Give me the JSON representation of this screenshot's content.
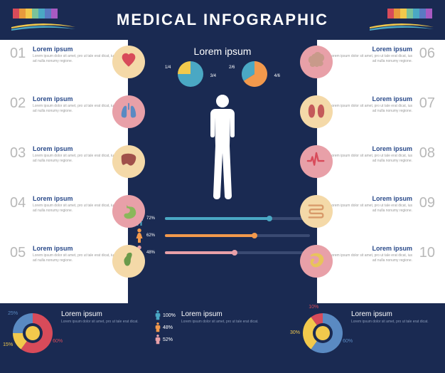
{
  "title": "MEDICAL INFOGRAPHIC",
  "header": {
    "bg": "#1a2a52",
    "title_color": "#ffffff",
    "stripe_colors": [
      "#d84b5a",
      "#e89a3c",
      "#f2c94c",
      "#7ac29a",
      "#4aa8c4",
      "#5a7ac2",
      "#a85ac2"
    ],
    "swoosh_colors": [
      "#f2c94c",
      "#4aa8c4",
      "#e89a3c"
    ]
  },
  "items_left": [
    {
      "num": "01",
      "title": "Lorem ipsum",
      "body": "Lorem ipsum dolor sit amet, pro ut tale erat dicat, ius ad nulla nonumy regione.",
      "organ": "heart",
      "circle": "#f4d9a8",
      "icon": "#d84b5a"
    },
    {
      "num": "02",
      "title": "Lorem ipsum",
      "body": "Lorem ipsum dolor sit amet, pro ut tale erat dicat, ius ad nulla nonumy regione.",
      "organ": "lungs",
      "circle": "#e8a0a8",
      "icon": "#5a8ac2"
    },
    {
      "num": "03",
      "title": "Lorem ipsum",
      "body": "Lorem ipsum dolor sit amet, pro ut tale erat dicat, ius ad nulla nonumy regione.",
      "organ": "liver",
      "circle": "#f4d9a8",
      "icon": "#a0504a"
    },
    {
      "num": "04",
      "title": "Lorem ipsum",
      "body": "Lorem ipsum dolor sit amet, pro ut tale erat dicat, ius ad nulla nonumy regione.",
      "organ": "stomach",
      "circle": "#e8a0a8",
      "icon": "#8ab85a"
    },
    {
      "num": "05",
      "title": "Lorem ipsum",
      "body": "Lorem ipsum dolor sit amet, pro ut tale erat dicat, ius ad nulla nonumy regione.",
      "organ": "gallbladder",
      "circle": "#f4d9a8",
      "icon": "#6a9a4a"
    }
  ],
  "items_right": [
    {
      "num": "06",
      "title": "Lorem ipsum",
      "body": "Lorem ipsum dolor sit amet, pro ut tale erat dicat, ius ad nulla nonumy regione.",
      "organ": "brain",
      "circle": "#e8a0a8",
      "icon": "#c89a8a"
    },
    {
      "num": "07",
      "title": "Lorem ipsum",
      "body": "Lorem ipsum dolor sit amet, pro ut tale erat dicat, ius ad nulla nonumy regione.",
      "organ": "kidneys",
      "circle": "#f4d9a8",
      "icon": "#c45a5a"
    },
    {
      "num": "08",
      "title": "Lorem ipsum",
      "body": "Lorem ipsum dolor sit amet, pro ut tale erat dicat, ius ad nulla nonumy regione.",
      "organ": "pulse",
      "circle": "#e8a0a8",
      "icon": "#d84b5a"
    },
    {
      "num": "09",
      "title": "Lorem ipsum",
      "body": "Lorem ipsum dolor sit amet, pro ut tale erat dicat, ius ad nulla nonumy regione.",
      "organ": "intestine",
      "circle": "#f4d9a8",
      "icon": "#d89a6a"
    },
    {
      "num": "10",
      "title": "Lorem ipsum",
      "body": "Lorem ipsum dolor sit amet, pro ut tale erat dicat, ius ad nulla nonumy regione.",
      "organ": "spleen",
      "circle": "#e8a0a8",
      "icon": "#e8c45a"
    }
  ],
  "center": {
    "title": "Lorem ipsum",
    "body_color": "#ffffff",
    "pies": [
      {
        "slices": [
          {
            "color": "#4aa8c4",
            "pct": 75
          },
          {
            "color": "#f2c94c",
            "pct": 25
          }
        ],
        "labels": [
          "1/4",
          "3/4"
        ]
      },
      {
        "slices": [
          {
            "color": "#f2994c",
            "pct": 66
          },
          {
            "color": "#4aa8c4",
            "pct": 34
          }
        ],
        "labels": [
          "2/6",
          "4/6"
        ]
      }
    ],
    "bars": [
      {
        "icon": "male",
        "color": "#4aa8c4",
        "val": 72,
        "label": "72%"
      },
      {
        "icon": "female",
        "color": "#f2994c",
        "val": 62,
        "label": "62%"
      },
      {
        "icon": "female",
        "color": "#e8a0a8",
        "val": 48,
        "label": "48%"
      }
    ]
  },
  "footer": [
    {
      "type": "donut",
      "title": "Lorem ipsum",
      "body": "Lorem ipsum dolor sit amet, pro ut tale erat dicat.",
      "segments": [
        {
          "color": "#d84b5a",
          "pct": 60,
          "label": "60%"
        },
        {
          "color": "#f2c94c",
          "pct": 15,
          "label": "15%"
        },
        {
          "color": "#5a8ac2",
          "pct": 25,
          "label": "25%"
        }
      ],
      "center_color": "#f2c94c"
    },
    {
      "type": "people",
      "title": "Lorem ipsum",
      "body": "Lorem ipsum dolor sit amet, pro ut tale erat dicat.",
      "items": [
        {
          "color": "#4aa8c4",
          "label": "100%"
        },
        {
          "color": "#f2994c",
          "label": "48%"
        },
        {
          "color": "#e8a0a8",
          "label": "52%"
        }
      ]
    },
    {
      "type": "donut",
      "title": "Lorem ipsum",
      "body": "Lorem ipsum dolor sit amet, pro ut tale erat dicat.",
      "segments": [
        {
          "color": "#5a8ac2",
          "pct": 60,
          "label": "60%"
        },
        {
          "color": "#f2c94c",
          "pct": 30,
          "label": "30%"
        },
        {
          "color": "#d84b5a",
          "pct": 10,
          "label": "10%"
        }
      ],
      "center_color": "#f2c94c"
    }
  ],
  "style": {
    "num_color": "#b8b8b8",
    "item_title_color": "#2a4a8a",
    "item_body_color": "#999999",
    "bg_dark": "#1a2a52"
  }
}
